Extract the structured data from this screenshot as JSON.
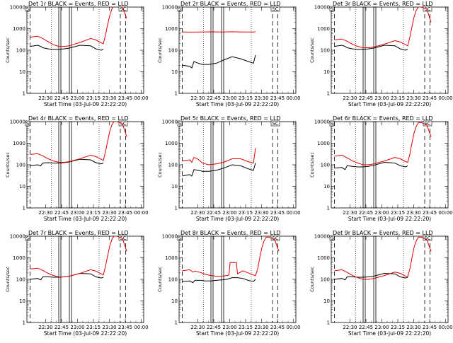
{
  "figure": {
    "background": "#ffffff",
    "events_color": "#000000",
    "lld_color": "#e00000",
    "y_ticks": [
      "1",
      "10",
      "100",
      "1000",
      "10000"
    ],
    "x_ticks": [
      "22:30",
      "22:45",
      "23:00",
      "23:15",
      "23:30",
      "23:45",
      "00:00"
    ],
    "xlabel": "Start Time (03-Jul-09 22:22:20)",
    "ylabel": "Counts/sec",
    "box_labels": [
      "S",
      "SC"
    ]
  },
  "chart_data": [
    {
      "type": "line",
      "title": "Det 1r BLACK = Events, RED = LLD",
      "xlabel": "Start Time (03-Jul-09 22:22:20)",
      "ylabel": "Counts/sec",
      "y_scale": "log",
      "ylim": [
        1,
        10000
      ],
      "xlim_minutes": [
        -10,
        100
      ],
      "x_ticks": [
        "22:30",
        "22:45",
        "23:00",
        "23:15",
        "23:30",
        "23:45",
        "00:00"
      ],
      "dashed_lines_min": [
        -7,
        78,
        83
      ],
      "dotted_lines_min": [
        13,
        58
      ],
      "boxes_min": [
        [
          20,
          22
        ],
        [
          30,
          32
        ]
      ],
      "series": [
        {
          "name": "Events",
          "color": "#000000",
          "x": [
            -7,
            0,
            3,
            5,
            10,
            15,
            20,
            25,
            30,
            40,
            50,
            55,
            60,
            62
          ],
          "y": [
            150,
            170,
            150,
            130,
            115,
            110,
            110,
            115,
            125,
            170,
            160,
            115,
            100,
            110
          ]
        },
        {
          "name": "LLD",
          "color": "#e00000",
          "x": [
            -7,
            0,
            5,
            10,
            15,
            20,
            25,
            30,
            40,
            50,
            55,
            60,
            62,
            64,
            66,
            68,
            70,
            72,
            75,
            80,
            84
          ],
          "y": [
            400,
            450,
            350,
            250,
            180,
            150,
            150,
            160,
            230,
            350,
            300,
            220,
            200,
            500,
            1500,
            4000,
            8000,
            12000,
            12000,
            10000,
            3000
          ]
        }
      ]
    },
    {
      "type": "line",
      "title": "Det 2r BLACK = Events, RED = LLD",
      "xlabel": "Start Time (03-Jul-09 22:22:20)",
      "ylabel": "Counts/sec",
      "y_scale": "log",
      "ylim": [
        1,
        10000
      ],
      "xlim_minutes": [
        -10,
        100
      ],
      "x_ticks": [
        "22:30",
        "22:45",
        "23:00",
        "23:15",
        "23:30",
        "23:45",
        "00:00"
      ],
      "dashed_lines_min": [
        -7,
        78,
        83
      ],
      "dotted_lines_min": [
        13,
        58
      ],
      "boxes_min": [
        [
          20,
          22
        ],
        [
          30,
          32
        ]
      ],
      "series": [
        {
          "name": "Events",
          "color": "#000000",
          "x": [
            -7,
            0,
            2,
            4,
            8,
            12,
            18,
            25,
            32,
            40,
            48,
            55,
            60,
            62
          ],
          "y": [
            20,
            18,
            15,
            30,
            25,
            22,
            22,
            25,
            35,
            50,
            40,
            30,
            25,
            60
          ]
        },
        {
          "name": "LLD",
          "color": "#e00000",
          "x": [
            -7,
            0,
            10,
            20,
            30,
            40,
            50,
            60,
            62
          ],
          "y": [
            700,
            690,
            700,
            710,
            700,
            720,
            700,
            700,
            720
          ]
        }
      ]
    },
    {
      "type": "line",
      "title": "Det 3r BLACK = Events, RED = LLD",
      "xlabel": "Start Time (03-Jul-09 22:22:20)",
      "ylabel": "Counts/sec",
      "y_scale": "log",
      "ylim": [
        1,
        10000
      ],
      "xlim_minutes": [
        -10,
        100
      ],
      "x_ticks": [
        "22:30",
        "22:45",
        "23:00",
        "23:15",
        "23:30",
        "23:45",
        "00:00"
      ],
      "dashed_lines_min": [
        -7,
        78,
        83
      ],
      "dotted_lines_min": [
        13,
        58
      ],
      "boxes_min": [
        [
          20,
          22
        ],
        [
          30,
          32
        ]
      ],
      "series": [
        {
          "name": "Events",
          "color": "#000000",
          "x": [
            -7,
            0,
            3,
            5,
            10,
            15,
            20,
            25,
            30,
            40,
            50,
            55,
            60,
            62
          ],
          "y": [
            150,
            170,
            150,
            130,
            115,
            110,
            110,
            115,
            125,
            170,
            160,
            115,
            100,
            110
          ]
        },
        {
          "name": "LLD",
          "color": "#e00000",
          "x": [
            -7,
            0,
            5,
            10,
            15,
            20,
            25,
            30,
            40,
            50,
            55,
            60,
            62,
            64,
            66,
            68,
            70,
            72,
            75,
            80,
            84
          ],
          "y": [
            300,
            330,
            260,
            190,
            150,
            130,
            130,
            140,
            190,
            280,
            240,
            180,
            160,
            400,
            1200,
            3500,
            7000,
            10000,
            10000,
            8000,
            2000
          ]
        }
      ]
    },
    {
      "type": "line",
      "title": "Det 4r BLACK = Events, RED = LLD",
      "xlabel": "Start Time (03-Jul-09 22:22:20)",
      "ylabel": "Counts/sec",
      "y_scale": "log",
      "ylim": [
        1,
        10000
      ],
      "xlim_minutes": [
        -10,
        100
      ],
      "x_ticks": [
        "22:30",
        "22:45",
        "23:00",
        "23:15",
        "23:30",
        "23:45",
        "00:00"
      ],
      "dashed_lines_min": [
        -7,
        78,
        83
      ],
      "dotted_lines_min": [
        13,
        58
      ],
      "boxes_min": [
        [
          20,
          22
        ],
        [
          30,
          32
        ]
      ],
      "series": [
        {
          "name": "Events",
          "color": "#000000",
          "x": [
            -7,
            0,
            3,
            5,
            10,
            15,
            20,
            25,
            30,
            40,
            50,
            55,
            60,
            62
          ],
          "y": [
            90,
            100,
            90,
            120,
            125,
            120,
            120,
            125,
            135,
            180,
            170,
            125,
            110,
            120
          ]
        },
        {
          "name": "LLD",
          "color": "#e00000",
          "x": [
            -7,
            0,
            5,
            10,
            15,
            20,
            25,
            30,
            40,
            50,
            55,
            60,
            62,
            64,
            66,
            68,
            70,
            72,
            75,
            80,
            84
          ],
          "y": [
            300,
            330,
            260,
            190,
            150,
            130,
            130,
            140,
            190,
            280,
            240,
            180,
            160,
            400,
            1200,
            3500,
            7000,
            10000,
            10000,
            8000,
            2000
          ]
        }
      ]
    },
    {
      "type": "line",
      "title": "Det 5r BLACK = Events, RED = LLD",
      "xlabel": "Start Time (03-Jul-09 22:22:20)",
      "ylabel": "Counts/sec",
      "y_scale": "log",
      "ylim": [
        1,
        10000
      ],
      "xlim_minutes": [
        -10,
        100
      ],
      "x_ticks": [
        "22:30",
        "22:45",
        "23:00",
        "23:15",
        "23:30",
        "23:45",
        "00:00"
      ],
      "dashed_lines_min": [
        -7,
        78,
        83
      ],
      "dotted_lines_min": [
        13,
        58
      ],
      "boxes_min": [
        [
          20,
          22
        ],
        [
          30,
          32
        ]
      ],
      "series": [
        {
          "name": "Events",
          "color": "#000000",
          "x": [
            -7,
            0,
            2,
            4,
            8,
            12,
            18,
            25,
            32,
            40,
            48,
            55,
            60,
            62
          ],
          "y": [
            30,
            35,
            30,
            60,
            55,
            50,
            50,
            55,
            70,
            100,
            90,
            65,
            55,
            120
          ]
        },
        {
          "name": "LLD",
          "color": "#e00000",
          "x": [
            -7,
            0,
            2,
            4,
            8,
            12,
            18,
            25,
            32,
            40,
            48,
            55,
            60,
            62
          ],
          "y": [
            150,
            170,
            130,
            220,
            180,
            120,
            100,
            110,
            130,
            190,
            190,
            140,
            120,
            600
          ]
        }
      ]
    },
    {
      "type": "line",
      "title": "Det 6r BLACK = Events, RED = LLD",
      "xlabel": "Start Time (03-Jul-09 22:22:20)",
      "ylabel": "Counts/sec",
      "y_scale": "log",
      "ylim": [
        1,
        10000
      ],
      "xlim_minutes": [
        -10,
        100
      ],
      "x_ticks": [
        "22:30",
        "22:45",
        "23:00",
        "23:15",
        "23:30",
        "23:45",
        "00:00"
      ],
      "dashed_lines_min": [
        -7,
        78,
        83
      ],
      "dotted_lines_min": [
        13,
        58
      ],
      "boxes_min": [
        [
          20,
          22
        ],
        [
          30,
          32
        ]
      ],
      "series": [
        {
          "name": "Events",
          "color": "#000000",
          "x": [
            -7,
            0,
            3,
            5,
            10,
            15,
            20,
            25,
            30,
            40,
            50,
            55,
            60,
            62
          ],
          "y": [
            70,
            75,
            60,
            90,
            85,
            80,
            80,
            85,
            95,
            130,
            120,
            90,
            80,
            90
          ]
        },
        {
          "name": "LLD",
          "color": "#e00000",
          "x": [
            -7,
            0,
            5,
            10,
            15,
            20,
            25,
            30,
            40,
            50,
            55,
            60,
            62,
            64,
            66,
            68,
            70,
            72,
            75,
            80,
            84
          ],
          "y": [
            250,
            280,
            210,
            150,
            120,
            100,
            100,
            110,
            150,
            220,
            190,
            140,
            130,
            300,
            1000,
            3000,
            6000,
            9000,
            9000,
            7000,
            2000
          ]
        }
      ]
    },
    {
      "type": "line",
      "title": "Det 7r BLACK = Events, RED = LLD",
      "xlabel": "Start Time (03-Jul-09 22:22:20)",
      "ylabel": "Counts/sec",
      "y_scale": "log",
      "ylim": [
        1,
        10000
      ],
      "xlim_minutes": [
        -10,
        100
      ],
      "x_ticks": [
        "22:30",
        "22:45",
        "23:00",
        "23:15",
        "23:30",
        "23:45",
        "00:00"
      ],
      "dashed_lines_min": [
        -7,
        78,
        83
      ],
      "dotted_lines_min": [
        13,
        58
      ],
      "boxes_min": [
        [
          20,
          22
        ],
        [
          30,
          32
        ]
      ],
      "series": [
        {
          "name": "Events",
          "color": "#000000",
          "x": [
            -7,
            0,
            3,
            5,
            10,
            15,
            20,
            25,
            30,
            40,
            50,
            55,
            60,
            62
          ],
          "y": [
            100,
            110,
            95,
            130,
            130,
            125,
            125,
            130,
            140,
            190,
            180,
            130,
            115,
            125
          ]
        },
        {
          "name": "LLD",
          "color": "#e00000",
          "x": [
            -7,
            0,
            5,
            10,
            15,
            20,
            25,
            30,
            40,
            50,
            55,
            60,
            62,
            64,
            66,
            68,
            70,
            72,
            75,
            80,
            84
          ],
          "y": [
            300,
            330,
            260,
            190,
            150,
            130,
            130,
            140,
            190,
            280,
            240,
            180,
            160,
            400,
            1200,
            3500,
            7000,
            10000,
            10000,
            8000,
            2000
          ]
        }
      ]
    },
    {
      "type": "line",
      "title": "Det 8r BLACK = Events, RED = LLD",
      "xlabel": "Start Time (03-Jul-09 22:22:20)",
      "ylabel": "Counts/sec",
      "y_scale": "log",
      "ylim": [
        1,
        10000
      ],
      "xlim_minutes": [
        -10,
        100
      ],
      "x_ticks": [
        "22:30",
        "22:45",
        "23:00",
        "23:15",
        "23:30",
        "23:45",
        "00:00"
      ],
      "dashed_lines_min": [
        -7,
        78,
        83
      ],
      "dotted_lines_min": [
        13,
        58
      ],
      "boxes_min": [
        [
          20,
          22
        ],
        [
          30,
          32
        ]
      ],
      "series": [
        {
          "name": "Events",
          "color": "#000000",
          "x": [
            -7,
            0,
            3,
            5,
            10,
            15,
            20,
            25,
            30,
            35,
            40,
            45,
            50,
            55,
            60,
            62
          ],
          "y": [
            80,
            85,
            70,
            90,
            90,
            85,
            85,
            90,
            95,
            100,
            120,
            120,
            110,
            90,
            80,
            100
          ]
        },
        {
          "name": "LLD",
          "color": "#e00000",
          "x": [
            -7,
            0,
            3,
            5,
            10,
            15,
            20,
            25,
            30,
            35,
            37,
            38,
            44,
            45,
            50,
            55,
            60,
            62,
            64,
            66,
            68,
            70,
            72,
            75,
            80,
            84
          ],
          "y": [
            250,
            280,
            220,
            240,
            210,
            170,
            150,
            140,
            140,
            150,
            160,
            600,
            600,
            180,
            250,
            200,
            160,
            150,
            300,
            1000,
            3000,
            6000,
            9000,
            9000,
            7000,
            2000
          ]
        }
      ]
    },
    {
      "type": "line",
      "title": "Det 9r BLACK = Events, RED = LLD",
      "xlabel": "Start Time (03-Jul-09 22:22:20)",
      "ylabel": "Counts/sec",
      "y_scale": "log",
      "ylim": [
        1,
        10000
      ],
      "xlim_minutes": [
        -10,
        100
      ],
      "x_ticks": [
        "22:30",
        "22:45",
        "23:00",
        "23:15",
        "23:30",
        "23:45",
        "00:00"
      ],
      "dashed_lines_min": [
        -7,
        78,
        83
      ],
      "dotted_lines_min": [
        13,
        58
      ],
      "boxes_min": [
        [
          20,
          22
        ],
        [
          30,
          32
        ]
      ],
      "series": [
        {
          "name": "Events",
          "color": "#000000",
          "x": [
            -7,
            0,
            3,
            5,
            10,
            15,
            20,
            25,
            30,
            40,
            50,
            55,
            60,
            62
          ],
          "y": [
            100,
            110,
            95,
            130,
            130,
            125,
            125,
            130,
            140,
            190,
            180,
            130,
            115,
            125
          ]
        },
        {
          "name": "LLD",
          "color": "#e00000",
          "x": [
            -7,
            0,
            5,
            10,
            15,
            20,
            25,
            30,
            40,
            50,
            55,
            60,
            62,
            64,
            66,
            68,
            70,
            72,
            75,
            80,
            84
          ],
          "y": [
            250,
            280,
            210,
            150,
            120,
            100,
            100,
            110,
            150,
            220,
            190,
            140,
            130,
            300,
            1000,
            3000,
            6000,
            9000,
            9000,
            7000,
            2000
          ]
        }
      ]
    }
  ]
}
